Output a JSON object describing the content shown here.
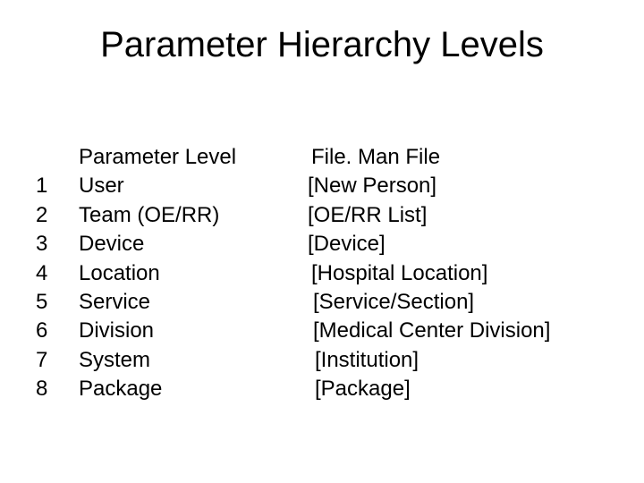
{
  "title": "Parameter Hierarchy Levels",
  "headers": {
    "left": "Parameter Level",
    "right": "File. Man File"
  },
  "rows": [
    {
      "num": "1",
      "label": "User",
      "file": "[New Person]"
    },
    {
      "num": "2",
      "label": "Team (OE/RR)",
      "file": "[OE/RR List]"
    },
    {
      "num": "3",
      "label": "Device",
      "file": "[Device]"
    },
    {
      "num": "4",
      "label": "Location",
      "file": "[Hospital Location]"
    },
    {
      "num": "5",
      "label": "Service",
      "file": "[Service/Section]"
    },
    {
      "num": "6",
      "label": "Division",
      "file": "[Medical Center Division]"
    },
    {
      "num": "7",
      "label": "System",
      "file": "[Institution]"
    },
    {
      "num": "8",
      "label": "Package",
      "file": "[Package]"
    }
  ],
  "style": {
    "background_color": "#ffffff",
    "text_color": "#000000",
    "title_fontsize": 40,
    "body_fontsize": 24,
    "font_family": "Arial"
  }
}
